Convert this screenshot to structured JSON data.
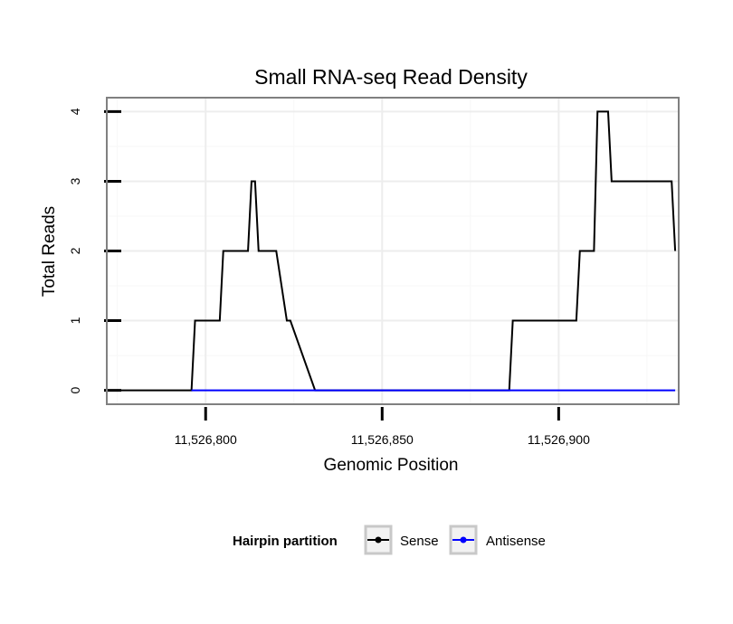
{
  "chart_data": {
    "type": "line",
    "title": "Small RNA-seq Read Density",
    "xlabel": "Genomic Position",
    "ylabel": "Total Reads",
    "xlim": [
      11526772,
      11526934
    ],
    "ylim": [
      -0.2,
      4.2
    ],
    "x_ticks": [
      11526800,
      11526850,
      11526900
    ],
    "x_tick_labels": [
      "11,526,800",
      "11,526,850",
      "11,526,900"
    ],
    "y_ticks": [
      0,
      1,
      2,
      3,
      4
    ],
    "y_tick_labels": [
      "0",
      "1",
      "2",
      "3",
      "4"
    ],
    "grid": true,
    "legend": {
      "title": "Hairpin partition",
      "position": "bottom",
      "entries": [
        "Sense",
        "Antisense"
      ]
    },
    "series": [
      {
        "name": "Sense",
        "color": "#000000",
        "x": [
          11526773,
          11526796,
          11526797,
          11526804,
          11526805,
          11526812,
          11526813,
          11526814,
          11526815,
          11526816,
          11526819,
          11526820,
          11526823,
          11526824,
          11526831,
          11526832,
          11526886,
          11526887,
          11526905,
          11526906,
          11526910,
          11526911,
          11526914,
          11526915,
          11526932,
          11526933
        ],
        "y": [
          0,
          0,
          1,
          1,
          2,
          2,
          3,
          3,
          2,
          2,
          2,
          2,
          1,
          1,
          0,
          0,
          0,
          1,
          1,
          2,
          2,
          4,
          4,
          3,
          3,
          2
        ]
      },
      {
        "name": "Antisense",
        "color": "#0000ff",
        "x": [
          11526796,
          11526933
        ],
        "y": [
          0,
          0
        ]
      }
    ]
  }
}
